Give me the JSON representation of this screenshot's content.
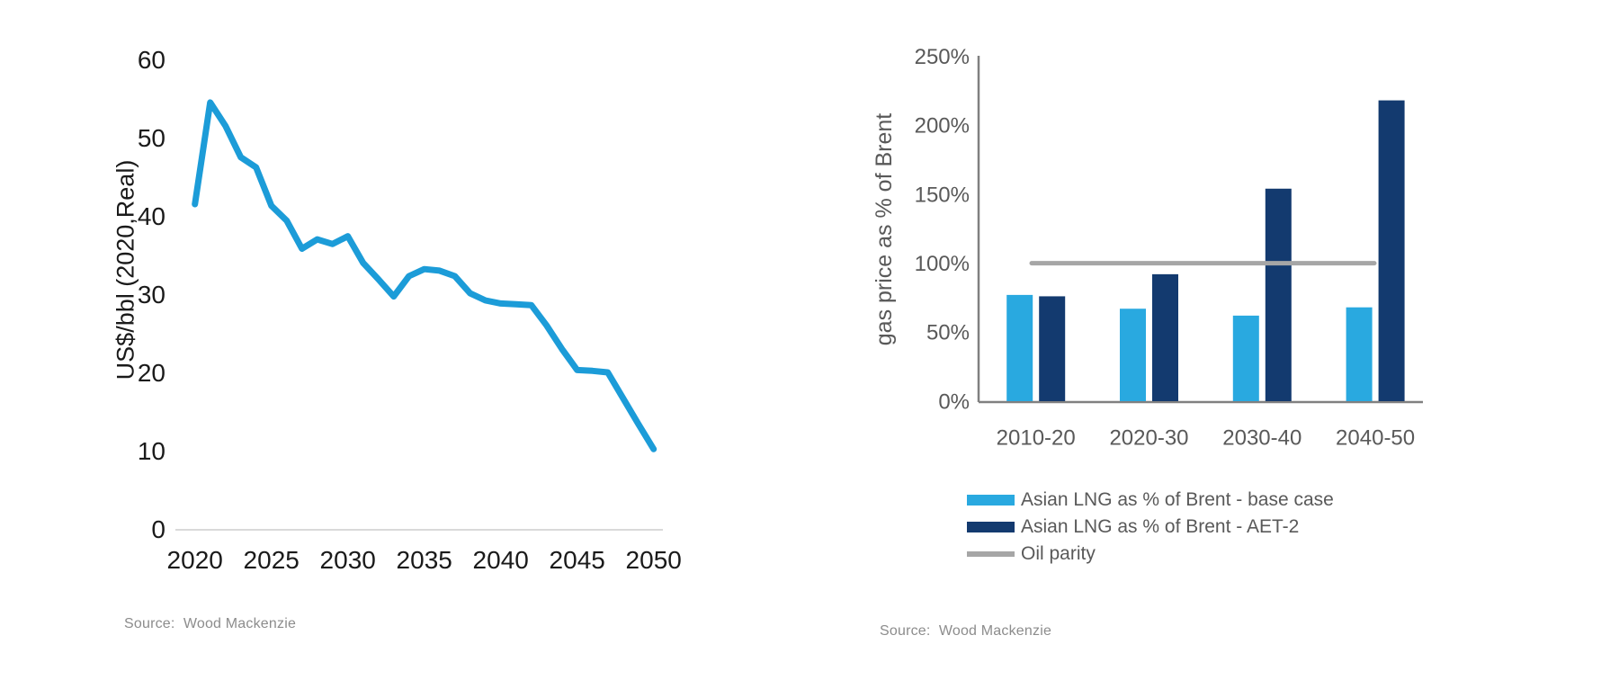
{
  "page": {
    "background": "#ffffff",
    "text_black": "#1a1a1a",
    "text_gray": "#595959",
    "source_gray": "#8c8c8c"
  },
  "chart_data": [
    {
      "type": "line",
      "title": "",
      "xlabel": "",
      "ylabel": "US$/bbl (2020,Real)",
      "xlim": [
        2020,
        2050
      ],
      "ylim": [
        0,
        60
      ],
      "xticks": [
        2020,
        2025,
        2030,
        2035,
        2040,
        2045,
        2050
      ],
      "yticks": [
        0,
        10,
        20,
        30,
        40,
        50,
        60
      ],
      "grid": false,
      "legend_position": "none",
      "x": [
        2020,
        2021,
        2022,
        2023,
        2024,
        2025,
        2026,
        2027,
        2028,
        2029,
        2030,
        2031,
        2032,
        2033,
        2034,
        2035,
        2036,
        2037,
        2038,
        2039,
        2040,
        2041,
        2042,
        2043,
        2044,
        2045,
        2046,
        2047,
        2048,
        2049,
        2050
      ],
      "series": [
        {
          "values": [
            41.5,
            54.5,
            51.5,
            47.5,
            46.2,
            41.3,
            39.4,
            35.8,
            37.0,
            36.4,
            37.4,
            34.0,
            31.9,
            29.7,
            32.3,
            33.2,
            33.0,
            32.3,
            30.1,
            29.2,
            28.8,
            28.7,
            28.6,
            26.0,
            23.0,
            20.3,
            20.2,
            20.0,
            16.7,
            13.4,
            10.2
          ],
          "color": "#1C9CD8"
        }
      ],
      "axis_line_color": "#D9D9D9",
      "source": "Source:  Wood Mackenzie"
    },
    {
      "type": "bar",
      "title": "",
      "xlabel": "",
      "ylabel": "gas price as % of Brent",
      "ylim": [
        0,
        250
      ],
      "yticks_percent": [
        "0%",
        "50%",
        "100%",
        "150%",
        "200%",
        "250%"
      ],
      "ytick_values": [
        0,
        50,
        100,
        150,
        200,
        250
      ],
      "grid": false,
      "legend_position": "bottom",
      "categories": [
        "2010-20",
        "2020-30",
        "2030-40",
        "2040-50"
      ],
      "series": [
        {
          "name": "Asian LNG as % of Brent - base case",
          "values": [
            77,
            67,
            62,
            68
          ],
          "color": "#29A9E0"
        },
        {
          "name": "Asian LNG as % of Brent - AET-2",
          "values": [
            76,
            92,
            154,
            218
          ],
          "color": "#133A6F"
        }
      ],
      "reference_line": {
        "name": "Oil parity",
        "value": 100,
        "color": "#A6A6A6"
      },
      "axis_line_color": "#808080",
      "source": "Source:  Wood Mackenzie"
    }
  ]
}
